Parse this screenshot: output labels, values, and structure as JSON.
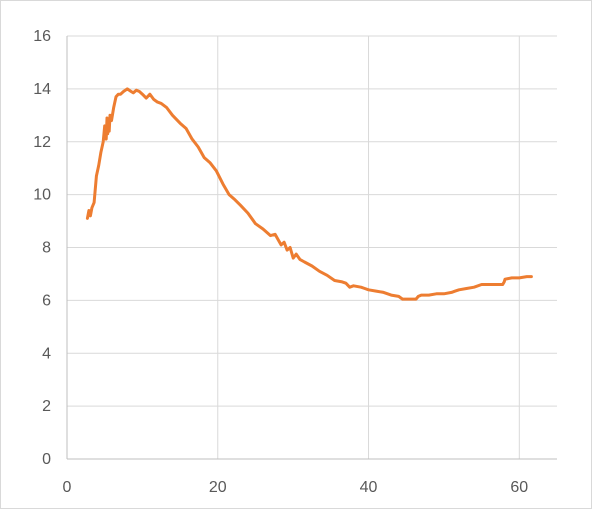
{
  "chart_data": {
    "type": "line",
    "title": "",
    "xlabel": "",
    "ylabel": "",
    "xlim": [
      0,
      65
    ],
    "ylim": [
      0,
      16
    ],
    "x_ticks": [
      0,
      20,
      40,
      60
    ],
    "y_ticks": [
      0,
      2,
      4,
      6,
      8,
      10,
      12,
      14,
      16
    ],
    "x_tick_labels": [
      "0",
      "20",
      "40",
      "60"
    ],
    "y_tick_labels": [
      "0",
      "2",
      "4",
      "6",
      "8",
      "10",
      "12",
      "14",
      "16"
    ],
    "grid": true,
    "legend": "none",
    "series": [
      {
        "color": "#ed7d31",
        "x": [
          2.7,
          2.9,
          3.1,
          3.3,
          3.6,
          3.9,
          4.2,
          4.5,
          4.8,
          5.0,
          5.2,
          5.3,
          5.4,
          5.5,
          5.6,
          5.7,
          5.9,
          6.2,
          6.5,
          6.8,
          7.1,
          7.5,
          8.0,
          8.5,
          8.8,
          9.2,
          9.6,
          10.0,
          10.5,
          11.0,
          11.5,
          12.0,
          12.5,
          13.2,
          14.0,
          15.0,
          15.8,
          16.6,
          17.4,
          18.2,
          19.0,
          19.8,
          20.7,
          21.5,
          22.3,
          23.0,
          24.0,
          25.0,
          26.0,
          27.0,
          27.6,
          28.0,
          28.4,
          28.8,
          29.2,
          29.6,
          30.0,
          30.4,
          30.9,
          31.5,
          32.5,
          33.5,
          34.5,
          35.5,
          36.5,
          37.0,
          37.5,
          38.0,
          39.0,
          39.5,
          40.0,
          41.0,
          42.0,
          43.0,
          44.0,
          44.5,
          45.5,
          46.3,
          46.6,
          47.0,
          48.0,
          49.0,
          50.0,
          51.0,
          51.5,
          52.0,
          53.0,
          54.0,
          55.0,
          56.0,
          57.0,
          57.8,
          58.0,
          58.1,
          59.0,
          60.0,
          61.0,
          61.6
        ],
        "values": [
          9.1,
          9.4,
          9.2,
          9.5,
          9.7,
          10.7,
          11.1,
          11.6,
          12.0,
          12.6,
          12.1,
          12.9,
          12.3,
          12.8,
          12.4,
          13.0,
          12.8,
          13.3,
          13.7,
          13.8,
          13.8,
          13.9,
          14.0,
          13.9,
          13.85,
          13.95,
          13.9,
          13.8,
          13.65,
          13.8,
          13.6,
          13.5,
          13.45,
          13.3,
          13.0,
          12.7,
          12.5,
          12.1,
          11.8,
          11.4,
          11.2,
          10.9,
          10.4,
          10.0,
          9.8,
          9.6,
          9.3,
          8.9,
          8.7,
          8.45,
          8.5,
          8.3,
          8.1,
          8.2,
          7.9,
          8.0,
          7.6,
          7.75,
          7.55,
          7.45,
          7.3,
          7.1,
          6.95,
          6.75,
          6.7,
          6.65,
          6.5,
          6.55,
          6.5,
          6.45,
          6.4,
          6.35,
          6.3,
          6.2,
          6.15,
          6.05,
          6.05,
          6.05,
          6.15,
          6.2,
          6.2,
          6.25,
          6.25,
          6.3,
          6.35,
          6.4,
          6.45,
          6.5,
          6.6,
          6.6,
          6.6,
          6.6,
          6.7,
          6.8,
          6.85,
          6.85,
          6.9,
          6.9
        ]
      }
    ]
  }
}
